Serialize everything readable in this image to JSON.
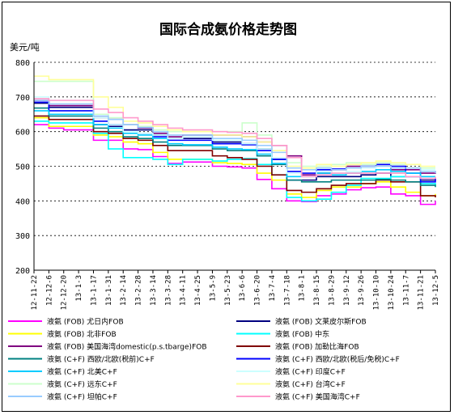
{
  "chart_data": {
    "type": "line",
    "title": "国际合成氨价格走势图",
    "unit_label": "美元/吨",
    "ylim": [
      200,
      800
    ],
    "yticks": [
      "200",
      "300",
      "400",
      "500",
      "600",
      "700",
      "800"
    ],
    "grid": "horizontal-dashed",
    "legend_position": "bottom",
    "x": [
      "12-11-22",
      "12-12-6",
      "12-12-20",
      "13-1-3",
      "13-1-17",
      "13-1-31",
      "13-2-14",
      "13-2-28",
      "13-3-14",
      "13-3-28",
      "13-4-11",
      "13-4-25",
      "13-5-9",
      "13-5-23",
      "13-6-6",
      "13-6-20",
      "13-7-4",
      "13-7-18",
      "13-8-1",
      "13-8-15",
      "13-8-29",
      "13-9-12",
      "13-9-26",
      "13-10-10",
      "13-10-24",
      "13-11-7",
      "13-11-21",
      "13-12-5"
    ],
    "series": [
      {
        "name": "液氨 (FOB) 尤日内FOB",
        "color": "#FF00FF",
        "values": [
          620,
          610,
          605,
          605,
          575,
          575,
          550,
          548,
          528,
          508,
          512,
          512,
          500,
          498,
          495,
          462,
          435,
          400,
          398,
          415,
          420,
          432,
          438,
          440,
          420,
          415,
          390,
          400
        ]
      },
      {
        "name": "液氨 (FOB) 文莱皮尔斯FOB",
        "color": "#000080",
        "values": [
          682,
          670,
          670,
          670,
          620,
          615,
          605,
          605,
          590,
          580,
          580,
          580,
          570,
          570,
          565,
          550,
          520,
          460,
          460,
          470,
          470,
          470,
          475,
          480,
          470,
          470,
          460,
          462
        ]
      },
      {
        "name": "液氨 (FOB) 北非FOB",
        "color": "#FFFF00",
        "values": [
          640,
          615,
          615,
          615,
          590,
          585,
          570,
          565,
          540,
          520,
          520,
          520,
          510,
          508,
          505,
          480,
          460,
          420,
          410,
          430,
          440,
          440,
          450,
          455,
          440,
          425,
          415,
          420
        ]
      },
      {
        "name": "液氨 (FOB) 中东",
        "color": "#00FFFF",
        "values": [
          630,
          625,
          625,
          625,
          595,
          550,
          525,
          525,
          520,
          505,
          520,
          520,
          515,
          520,
          522,
          505,
          475,
          410,
          400,
          405,
          425,
          445,
          465,
          465,
          470,
          470,
          450,
          445
        ]
      },
      {
        "name": "液氨 (FOB) 美国海湾domestic(p.s.tbarge)FOB",
        "color": "#800080",
        "values": [
          690,
          675,
          675,
          675,
          640,
          635,
          620,
          610,
          595,
          585,
          590,
          590,
          590,
          590,
          585,
          570,
          560,
          530,
          475,
          480,
          490,
          500,
          500,
          505,
          490,
          490,
          480,
          485
        ]
      },
      {
        "name": "液氨 (FOB) 加勒比海FOB",
        "color": "#800000",
        "values": [
          645,
          635,
          635,
          635,
          600,
          595,
          580,
          575,
          560,
          545,
          545,
          545,
          530,
          525,
          520,
          500,
          475,
          430,
          425,
          435,
          445,
          450,
          450,
          460,
          455,
          455,
          415,
          410
        ]
      },
      {
        "name": "液氨 (C+F) 西欧/北欧(税前)C+F",
        "color": "#008080",
        "values": [
          668,
          645,
          645,
          645,
          610,
          600,
          585,
          580,
          570,
          560,
          560,
          560,
          550,
          545,
          545,
          530,
          505,
          460,
          455,
          455,
          460,
          460,
          460,
          462,
          460,
          455,
          445,
          440
        ]
      },
      {
        "name": "液氨 (C+F) 西欧/北欧(税后/免税)C+F",
        "color": "#0000FF",
        "values": [
          685,
          660,
          660,
          660,
          630,
          620,
          600,
          595,
          585,
          575,
          575,
          575,
          565,
          565,
          562,
          545,
          520,
          485,
          480,
          490,
          492,
          495,
          500,
          505,
          500,
          480,
          455,
          465
        ]
      },
      {
        "name": "液氨 (C+F) 北美C+F",
        "color": "#00CCFF",
        "values": [
          660,
          650,
          650,
          650,
          620,
          610,
          595,
          590,
          580,
          565,
          562,
          562,
          555,
          550,
          548,
          535,
          508,
          470,
          470,
          480,
          475,
          480,
          485,
          490,
          485,
          480,
          470,
          470
        ]
      },
      {
        "name": "液氨 (C+F) 印度C+F",
        "color": "#CCFFFF",
        "values": [
          700,
          690,
          690,
          690,
          640,
          620,
          600,
          595,
          590,
          580,
          585,
          585,
          575,
          575,
          565,
          550,
          525,
          480,
          470,
          485,
          480,
          485,
          495,
          500,
          495,
          495,
          490,
          490
        ]
      },
      {
        "name": "液氨 (C+F) 远东C+F",
        "color": "#CCFFCC",
        "values": [
          745,
          745,
          745,
          745,
          650,
          640,
          620,
          615,
          605,
          600,
          600,
          600,
          600,
          600,
          625,
          590,
          560,
          510,
          500,
          500,
          505,
          510,
          505,
          510,
          505,
          505,
          495,
          495
        ]
      },
      {
        "name": "液氨 (C+F) 台湾C+F",
        "color": "#FFFF99",
        "values": [
          760,
          750,
          750,
          750,
          700,
          670,
          630,
          625,
          615,
          605,
          600,
          600,
          590,
          590,
          585,
          570,
          545,
          500,
          495,
          505,
          500,
          505,
          510,
          515,
          510,
          505,
          500,
          500
        ]
      },
      {
        "name": "液氨 (C+F) 坦帕C+F",
        "color": "#99CCFF",
        "values": [
          690,
          680,
          680,
          680,
          645,
          635,
          620,
          612,
          600,
          590,
          590,
          590,
          580,
          580,
          575,
          560,
          540,
          495,
          490,
          495,
          490,
          495,
          500,
          500,
          495,
          495,
          485,
          480
        ]
      },
      {
        "name": "液氨 (C+F) 美国海湾C+F",
        "color": "#FF99CC",
        "values": [
          695,
          690,
          690,
          690,
          665,
          655,
          640,
          630,
          620,
          610,
          605,
          605,
          600,
          598,
          595,
          580,
          560,
          525,
          470,
          475,
          480,
          480,
          480,
          480,
          480,
          470,
          465,
          470
        ]
      }
    ]
  }
}
